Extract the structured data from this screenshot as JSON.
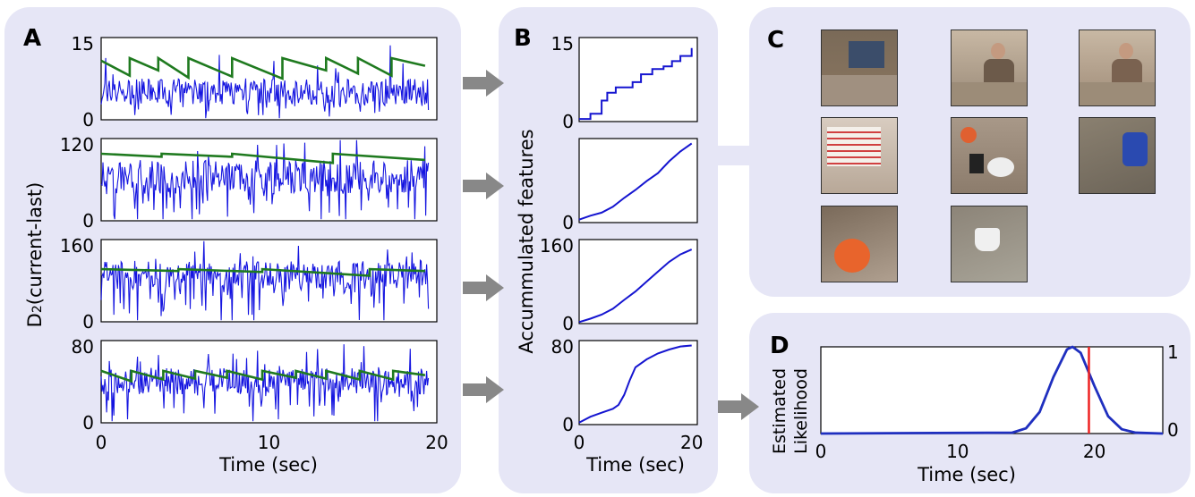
{
  "panels": {
    "A": "A",
    "B": "B",
    "C": "C",
    "D": "D"
  },
  "colors": {
    "signal": "#1515e0",
    "threshold": "#1f7a1f",
    "cumulative": "#1515d0",
    "likelihood": "#1f2fbf",
    "marker": "#ee2222",
    "panel_bg": "#e6e6f6",
    "arrow": "#888888"
  },
  "panelA": {
    "ylabel_prefix": "D",
    "ylabel_sub": "2",
    "ylabel_suffix": "(current-last)",
    "xlabel": "Time (sec)",
    "xticks": [
      "0",
      "10",
      "20"
    ],
    "subplots": [
      {
        "ymax_label": "15",
        "ymin_label": "0"
      },
      {
        "ymax_label": "120",
        "ymin_label": "0"
      },
      {
        "ymax_label": "160",
        "ymin_label": "0"
      },
      {
        "ymax_label": "80",
        "ymin_label": "0"
      }
    ]
  },
  "panelB": {
    "ylabel": "Accummulated features",
    "xlabel": "Time (sec)",
    "xticks": [
      "0",
      "20"
    ],
    "subplots": [
      {
        "ymax_label": "15",
        "ymin_label": "0"
      },
      {
        "ymax_label": "",
        "ymin_label": "0"
      },
      {
        "ymax_label": "160",
        "ymin_label": "0"
      },
      {
        "ymax_label": "80",
        "ymin_label": "0"
      }
    ]
  },
  "panelD": {
    "ylabel_line1": "Estimated",
    "ylabel_line2": "Likelihood",
    "xlabel": "Time (sec)",
    "xticks": [
      "0",
      "10",
      "20"
    ],
    "right_top": "1",
    "right_bottom": "0"
  },
  "chart_data": [
    {
      "type": "line",
      "panel": "A1",
      "xlim": [
        0,
        20
      ],
      "ylim": [
        0,
        16
      ],
      "series": [
        {
          "x": [
            0,
            1.7,
            1.7,
            3.4,
            3.4,
            5.2,
            5.2,
            7.8,
            7.8,
            10.8,
            10.8,
            13.4,
            13.4,
            15.3,
            15.3,
            17.3,
            17.3,
            19.3
          ],
          "values": [
            11.5,
            8.6,
            12.0,
            9.6,
            12.0,
            8.2,
            12.0,
            8.4,
            12.0,
            8.0,
            12.0,
            9.6,
            12.0,
            9.0,
            12.0,
            8.6,
            12.0,
            10.5
          ]
        }
      ]
    },
    {
      "type": "line",
      "panel": "A2",
      "xlim": [
        0,
        20
      ],
      "ylim": [
        0,
        135
      ],
      "series": [
        {
          "x": [
            0,
            3.6,
            3.6,
            7.8,
            7.8,
            13.8,
            13.8,
            19.3
          ],
          "values": [
            110,
            105,
            110,
            105,
            110,
            95,
            110,
            100
          ]
        }
      ]
    },
    {
      "type": "line",
      "panel": "A3",
      "xlim": [
        0,
        20
      ],
      "ylim": [
        0,
        175
      ],
      "series": [
        {
          "x": [
            0,
            4.6,
            4.6,
            9.6,
            9.6,
            16.0,
            16.0,
            19.3
          ],
          "values": [
            112,
            108,
            112,
            106,
            112,
            98,
            112,
            108
          ]
        }
      ]
    },
    {
      "type": "line",
      "panel": "A4",
      "xlim": [
        0,
        20
      ],
      "ylim": [
        0,
        95
      ],
      "series": [
        {
          "x": [
            0,
            1.8,
            1.8,
            3.7,
            3.7,
            5.6,
            5.6,
            7.5,
            7.5,
            9.6,
            9.6,
            11.6,
            11.6,
            13.4,
            13.4,
            15.4,
            15.4,
            17.4,
            17.4,
            19.3
          ],
          "values": [
            60,
            48,
            60,
            50,
            60,
            51,
            60,
            52,
            60,
            50,
            60,
            52,
            60,
            51,
            60,
            50,
            60,
            50,
            60,
            55
          ]
        }
      ]
    },
    {
      "type": "line",
      "panel": "B1",
      "xlim": [
        0,
        21
      ],
      "ylim": [
        0,
        16
      ],
      "series": [
        {
          "x": [
            0,
            1.5,
            2,
            4,
            5,
            6.5,
            8,
            9.5,
            11,
            13,
            15,
            16.5,
            18,
            20
          ],
          "values": [
            0.5,
            0.5,
            1.5,
            4,
            5.5,
            6.5,
            6.5,
            7.5,
            9,
            10,
            10.5,
            11.5,
            12.5,
            14
          ]
        }
      ]
    },
    {
      "type": "line",
      "panel": "B2",
      "xlim": [
        0,
        21
      ],
      "ylim": [
        0,
        85
      ],
      "series": [
        {
          "x": [
            0,
            2,
            4,
            6,
            8,
            10,
            12,
            14,
            16,
            18,
            20
          ],
          "values": [
            3,
            7,
            10,
            16,
            25,
            33,
            42,
            50,
            62,
            72,
            80
          ]
        }
      ]
    },
    {
      "type": "line",
      "panel": "B3",
      "xlim": [
        0,
        21
      ],
      "ylim": [
        0,
        170
      ],
      "series": [
        {
          "x": [
            0,
            2,
            4,
            6,
            8,
            10,
            12,
            14,
            16,
            18,
            20
          ],
          "values": [
            3,
            10,
            18,
            30,
            48,
            65,
            85,
            105,
            125,
            140,
            150
          ]
        }
      ]
    },
    {
      "type": "line",
      "panel": "B4",
      "xlim": [
        0,
        21
      ],
      "ylim": [
        0,
        85
      ],
      "series": [
        {
          "x": [
            0,
            2,
            4,
            6,
            7,
            8,
            9,
            10,
            12,
            14,
            16,
            18,
            20
          ],
          "values": [
            2,
            8,
            12,
            16,
            20,
            30,
            45,
            58,
            66,
            72,
            76,
            79,
            80
          ]
        }
      ]
    },
    {
      "type": "line",
      "panel": "D",
      "xlim": [
        0,
        25
      ],
      "ylim": [
        0,
        1
      ],
      "series": [
        {
          "x": [
            0,
            14,
            15,
            16,
            17,
            18,
            18.4,
            19,
            20,
            21,
            22,
            23,
            25
          ],
          "values": [
            0,
            0.01,
            0.06,
            0.25,
            0.65,
            0.97,
            1.0,
            0.93,
            0.55,
            0.2,
            0.05,
            0.01,
            0
          ]
        }
      ],
      "marker_x": 19.6
    }
  ],
  "thumbs": [
    {
      "icon": "office-desk-photo",
      "bg": "#8a7660",
      "fg": "#3b4d6a"
    },
    {
      "icon": "person-at-desk-photo",
      "bg": "#9a8a78",
      "fg": "#6c5a4a"
    },
    {
      "icon": "person-reaching-photo",
      "bg": "#a08c78",
      "fg": "#7a6250"
    },
    {
      "icon": "shelf-papers-photo",
      "bg": "#b8a898",
      "fg": "#d04040"
    },
    {
      "icon": "desk-objects-photo",
      "bg": "#8c7c6c",
      "fg": "#e06030"
    },
    {
      "icon": "blurred-chair-photo",
      "bg": "#6c6458",
      "fg": "#2a4ab0"
    },
    {
      "icon": "orange-ball-photo",
      "bg": "#7a6a5a",
      "fg": "#e8642c"
    },
    {
      "icon": "white-cup-photo",
      "bg": "#8c8478",
      "fg": "#f0f0f0"
    }
  ]
}
